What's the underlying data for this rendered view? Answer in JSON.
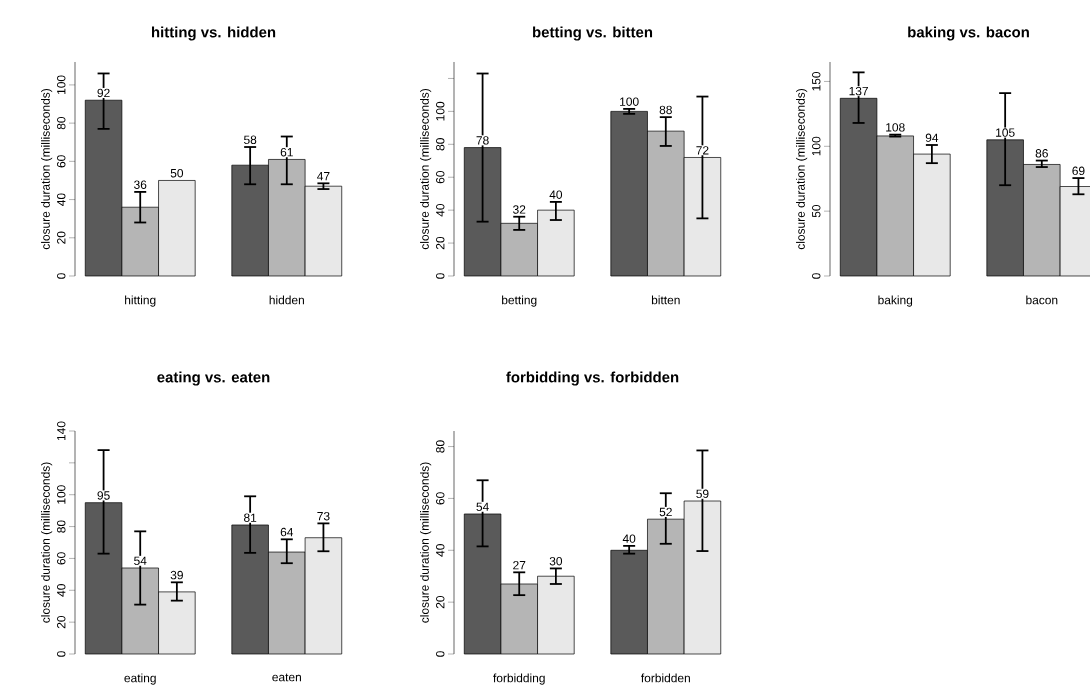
{
  "chart_data": [
    {
      "type": "bar",
      "title": "hitting vs. hidden",
      "ylabel": "closure duration (milliseconds)",
      "categories": [
        "hitting",
        "hidden"
      ],
      "ylim": [
        0,
        112
      ],
      "yticks": [
        0,
        20,
        40,
        60,
        80,
        100
      ],
      "data_labels": true,
      "series": [
        {
          "color": "#5a5a5a",
          "values": [
            92,
            58
          ],
          "errors": [
            [
              77,
              106
            ],
            [
              48,
              67.5
            ]
          ]
        },
        {
          "color": "#b5b5b5",
          "values": [
            36,
            61
          ],
          "errors": [
            [
              28,
              44
            ],
            [
              48,
              73
            ]
          ]
        },
        {
          "color": "#e8e8e8",
          "values": [
            50,
            47
          ],
          "errors": [
            null,
            [
              45.5,
              48.5
            ]
          ]
        }
      ]
    },
    {
      "type": "bar",
      "title": "betting vs. bitten",
      "ylabel": "closure duration (milliseconds)",
      "categories": [
        "betting",
        "bitten"
      ],
      "ylim": [
        0,
        130
      ],
      "yticks": [
        0,
        20,
        40,
        60,
        80,
        100,
        {
          "value": 120,
          "label": null
        }
      ],
      "data_labels": true,
      "series": [
        {
          "color": "#5a5a5a",
          "values": [
            78,
            100
          ],
          "errors": [
            [
              33,
              123
            ],
            [
              98.5,
              101.5
            ]
          ]
        },
        {
          "color": "#b5b5b5",
          "values": [
            32,
            88
          ],
          "errors": [
            [
              28,
              36
            ],
            [
              79,
              96.5
            ]
          ]
        },
        {
          "color": "#e8e8e8",
          "values": [
            40,
            72
          ],
          "errors": [
            [
              34,
              45
            ],
            [
              35,
              109
            ]
          ]
        }
      ]
    },
    {
      "type": "bar",
      "title": "baking vs. bacon",
      "ylabel": "closure duration (milliseconds)",
      "categories": [
        "baking",
        "bacon"
      ],
      "ylim": [
        0,
        165
      ],
      "yticks": [
        0,
        50,
        100,
        150
      ],
      "data_labels": true,
      "series": [
        {
          "color": "#5a5a5a",
          "values": [
            137,
            105
          ],
          "errors": [
            [
              118,
              157
            ],
            [
              70,
              141
            ]
          ]
        },
        {
          "color": "#b5b5b5",
          "values": [
            108,
            86
          ],
          "errors": [
            [
              107.5,
              109
            ],
            [
              84,
              89
            ]
          ]
        },
        {
          "color": "#e8e8e8",
          "values": [
            94,
            69
          ],
          "errors": [
            [
              87,
              101
            ],
            [
              63,
              75.5
            ]
          ]
        }
      ]
    },
    {
      "type": "bar",
      "title": "eating vs. eaten",
      "ylabel": "closure duration (milliseconds)",
      "categories": [
        "eating",
        "eaten"
      ],
      "ylim": [
        0,
        140
      ],
      "yticks": [
        0,
        20,
        40,
        60,
        80,
        100,
        {
          "value": 120,
          "label": null
        },
        140
      ],
      "data_labels": true,
      "series": [
        {
          "color": "#5a5a5a",
          "values": [
            95,
            81
          ],
          "errors": [
            [
              63,
              128
            ],
            [
              63.5,
              99
            ]
          ]
        },
        {
          "color": "#b5b5b5",
          "values": [
            54,
            64
          ],
          "errors": [
            [
              31,
              77
            ],
            [
              57,
              72
            ]
          ]
        },
        {
          "color": "#e8e8e8",
          "values": [
            39,
            73
          ],
          "errors": [
            [
              33.5,
              45
            ],
            [
              64.5,
              82
            ]
          ]
        }
      ]
    },
    {
      "type": "bar",
      "title": "forbidding vs. forbidden",
      "ylabel": "closure duration (milliseconds)",
      "categories": [
        "forbidding",
        "forbidden"
      ],
      "ylim": [
        0,
        86
      ],
      "yticks": [
        0,
        20,
        40,
        60,
        80
      ],
      "data_labels": true,
      "series": [
        {
          "color": "#5a5a5a",
          "values": [
            54,
            40
          ],
          "errors": [
            [
              41.5,
              67
            ],
            [
              38.7,
              41.7
            ]
          ]
        },
        {
          "color": "#b5b5b5",
          "values": [
            27,
            52
          ],
          "errors": [
            [
              22.7,
              31.5
            ],
            [
              42.5,
              62
            ]
          ]
        },
        {
          "color": "#e8e8e8",
          "values": [
            30,
            59
          ],
          "errors": [
            [
              27,
              33
            ],
            [
              39.7,
              78.5
            ]
          ]
        }
      ]
    }
  ]
}
